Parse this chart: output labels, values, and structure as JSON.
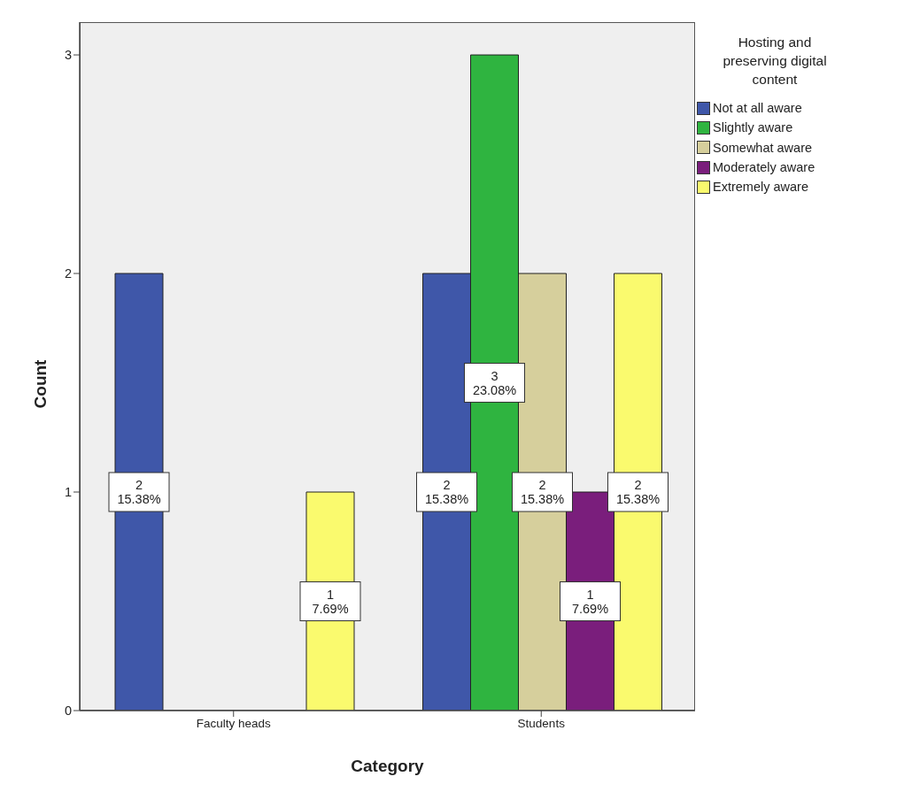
{
  "chart_data": {
    "type": "bar",
    "xlabel": "Category",
    "ylabel": "Count",
    "legend_title": "Hosting and preserving digital content",
    "categories": [
      "Faculty heads",
      "Students"
    ],
    "series": [
      {
        "name": "Not at all aware",
        "color": "#3f57a9",
        "values": [
          2,
          2
        ],
        "value_labels": [
          "2\n15.38%",
          "2\n15.38%"
        ]
      },
      {
        "name": "Slightly aware",
        "color": "#2fb440",
        "values": [
          null,
          3
        ],
        "value_labels": [
          null,
          "3\n23.08%"
        ]
      },
      {
        "name": "Somewhat aware",
        "color": "#d6cf9c",
        "values": [
          null,
          2
        ],
        "value_labels": [
          null,
          "2\n15.38%"
        ]
      },
      {
        "name": "Moderately aware",
        "color": "#7a1e7c",
        "values": [
          null,
          1
        ],
        "value_labels": [
          null,
          "1\n7.69%"
        ]
      },
      {
        "name": "Extremely aware",
        "color": "#fafa6e",
        "values": [
          1,
          2
        ],
        "value_labels": [
          "1\n7.69%",
          "2\n15.38%"
        ]
      }
    ],
    "ylim": [
      0,
      3.15
    ],
    "yticks": [
      0,
      1,
      2,
      3
    ],
    "legend": "top right"
  }
}
